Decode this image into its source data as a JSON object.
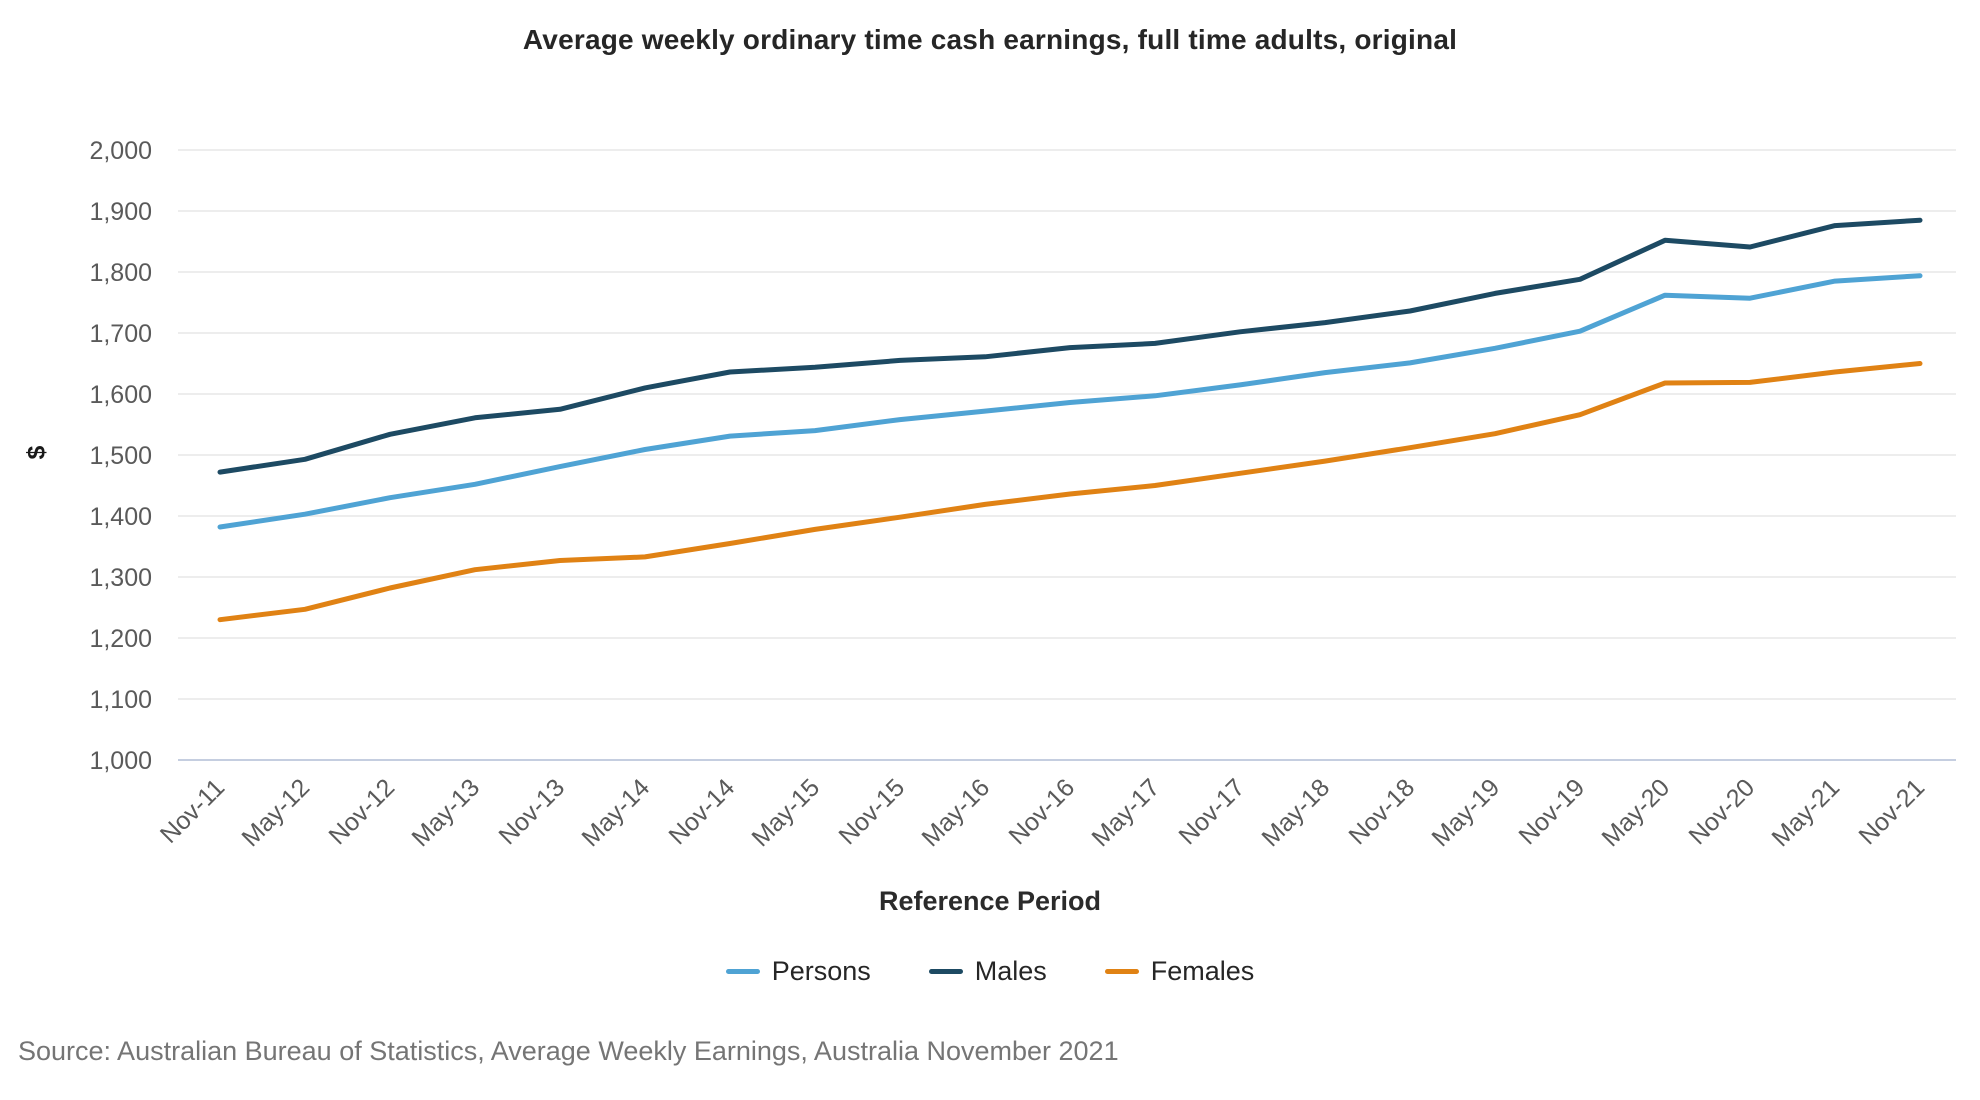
{
  "source_note": "Source: Australian Bureau of Statistics, Average Weekly Earnings, Australia November 2021",
  "chart_data": {
    "type": "line",
    "title": "Average weekly ordinary time cash earnings, full time adults, original",
    "xlabel": "Reference Period",
    "ylabel": "$",
    "ylim": [
      1000,
      2000
    ],
    "ytick_step": 100,
    "grid": true,
    "legend_position": "bottom",
    "categories": [
      "Nov-11",
      "May-12",
      "Nov-12",
      "May-13",
      "Nov-13",
      "May-14",
      "Nov-14",
      "May-15",
      "Nov-15",
      "May-16",
      "Nov-16",
      "May-17",
      "Nov-17",
      "May-18",
      "Nov-18",
      "May-19",
      "Nov-19",
      "May-20",
      "Nov-20",
      "May-21",
      "Nov-21"
    ],
    "series": [
      {
        "name": "Persons",
        "color": "#4FA3D4",
        "values": [
          1382,
          1403,
          1430,
          1452,
          1481,
          1509,
          1531,
          1540,
          1558,
          1572,
          1586,
          1597,
          1615,
          1635,
          1651,
          1675,
          1703,
          1762,
          1757,
          1785,
          1794
        ]
      },
      {
        "name": "Males",
        "color": "#1D4A63",
        "values": [
          1472,
          1493,
          1534,
          1561,
          1575,
          1610,
          1636,
          1644,
          1655,
          1661,
          1676,
          1683,
          1702,
          1717,
          1736,
          1765,
          1788,
          1852,
          1841,
          1876,
          1885
        ]
      },
      {
        "name": "Females",
        "color": "#E08214",
        "values": [
          1230,
          1247,
          1282,
          1312,
          1327,
          1333,
          1355,
          1378,
          1398,
          1419,
          1436,
          1450,
          1470,
          1490,
          1512,
          1535,
          1566,
          1618,
          1619,
          1636,
          1650
        ]
      }
    ],
    "colors": {
      "gridline": "#E7E7E7",
      "axis_line": "#C5CEE0",
      "tick_label": "#5A5A5A",
      "title": "#262626"
    }
  }
}
